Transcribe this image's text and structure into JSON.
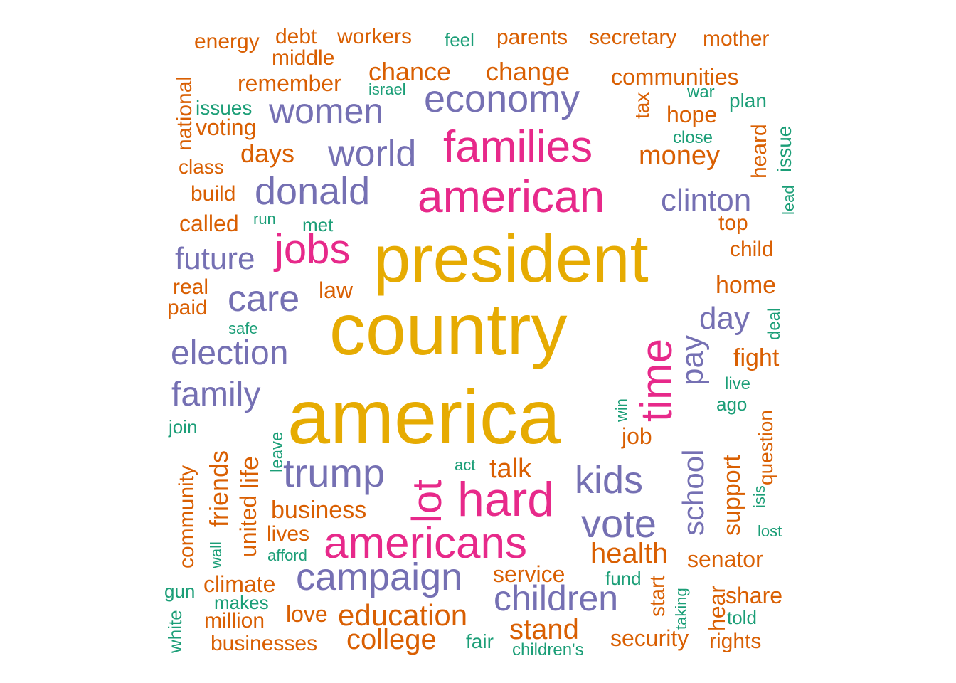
{
  "colors": {
    "gold": "#E6AB02",
    "pink": "#E7298A",
    "purple": "#7570B3",
    "orange": "#D95F02",
    "teal": "#1B9E77"
  },
  "words": [
    {
      "text": "president",
      "color": "gold",
      "weight": 10
    },
    {
      "text": "country",
      "color": "gold",
      "weight": 10
    },
    {
      "text": "america",
      "color": "gold",
      "weight": 10
    },
    {
      "text": "families",
      "color": "pink",
      "weight": 7
    },
    {
      "text": "american",
      "color": "pink",
      "weight": 7
    },
    {
      "text": "jobs",
      "color": "pink",
      "weight": 7
    },
    {
      "text": "time",
      "color": "pink",
      "weight": 7
    },
    {
      "text": "lot",
      "color": "pink",
      "weight": 7
    },
    {
      "text": "hard",
      "color": "pink",
      "weight": 7
    },
    {
      "text": "americans",
      "color": "pink",
      "weight": 7
    },
    {
      "text": "economy",
      "color": "purple",
      "weight": 5
    },
    {
      "text": "women",
      "color": "purple",
      "weight": 5
    },
    {
      "text": "world",
      "color": "purple",
      "weight": 5
    },
    {
      "text": "donald",
      "color": "purple",
      "weight": 5
    },
    {
      "text": "clinton",
      "color": "purple",
      "weight": 5
    },
    {
      "text": "future",
      "color": "purple",
      "weight": 5
    },
    {
      "text": "care",
      "color": "purple",
      "weight": 5
    },
    {
      "text": "election",
      "color": "purple",
      "weight": 5
    },
    {
      "text": "family",
      "color": "purple",
      "weight": 5
    },
    {
      "text": "trump",
      "color": "purple",
      "weight": 5
    },
    {
      "text": "day",
      "color": "purple",
      "weight": 5
    },
    {
      "text": "pay",
      "color": "purple",
      "weight": 5
    },
    {
      "text": "school",
      "color": "purple",
      "weight": 5
    },
    {
      "text": "kids",
      "color": "purple",
      "weight": 5
    },
    {
      "text": "vote",
      "color": "purple",
      "weight": 5
    },
    {
      "text": "campaign",
      "color": "purple",
      "weight": 5
    },
    {
      "text": "children",
      "color": "purple",
      "weight": 5
    },
    {
      "text": "energy",
      "color": "orange",
      "weight": 3
    },
    {
      "text": "debt",
      "color": "orange",
      "weight": 3
    },
    {
      "text": "workers",
      "color": "orange",
      "weight": 3
    },
    {
      "text": "parents",
      "color": "orange",
      "weight": 3
    },
    {
      "text": "secretary",
      "color": "orange",
      "weight": 3
    },
    {
      "text": "mother",
      "color": "orange",
      "weight": 3
    },
    {
      "text": "middle",
      "color": "orange",
      "weight": 3
    },
    {
      "text": "chance",
      "color": "orange",
      "weight": 3
    },
    {
      "text": "change",
      "color": "orange",
      "weight": 3
    },
    {
      "text": "communities",
      "color": "orange",
      "weight": 3
    },
    {
      "text": "remember",
      "color": "orange",
      "weight": 3
    },
    {
      "text": "national",
      "color": "orange",
      "weight": 3
    },
    {
      "text": "voting",
      "color": "orange",
      "weight": 3
    },
    {
      "text": "tax",
      "color": "orange",
      "weight": 3
    },
    {
      "text": "hope",
      "color": "orange",
      "weight": 3
    },
    {
      "text": "days",
      "color": "orange",
      "weight": 3
    },
    {
      "text": "money",
      "color": "orange",
      "weight": 3
    },
    {
      "text": "heard",
      "color": "orange",
      "weight": 3
    },
    {
      "text": "class",
      "color": "orange",
      "weight": 3
    },
    {
      "text": "build",
      "color": "orange",
      "weight": 3
    },
    {
      "text": "called",
      "color": "orange",
      "weight": 3
    },
    {
      "text": "top",
      "color": "orange",
      "weight": 3
    },
    {
      "text": "child",
      "color": "orange",
      "weight": 3
    },
    {
      "text": "real",
      "color": "orange",
      "weight": 3
    },
    {
      "text": "law",
      "color": "orange",
      "weight": 3
    },
    {
      "text": "paid",
      "color": "orange",
      "weight": 3
    },
    {
      "text": "home",
      "color": "orange",
      "weight": 3
    },
    {
      "text": "fight",
      "color": "orange",
      "weight": 3
    },
    {
      "text": "question",
      "color": "orange",
      "weight": 3
    },
    {
      "text": "job",
      "color": "orange",
      "weight": 3
    },
    {
      "text": "support",
      "color": "orange",
      "weight": 3
    },
    {
      "text": "friends",
      "color": "orange",
      "weight": 3
    },
    {
      "text": "life",
      "color": "orange",
      "weight": 3
    },
    {
      "text": "united",
      "color": "orange",
      "weight": 3
    },
    {
      "text": "talk",
      "color": "orange",
      "weight": 3
    },
    {
      "text": "community",
      "color": "orange",
      "weight": 3
    },
    {
      "text": "business",
      "color": "orange",
      "weight": 3
    },
    {
      "text": "lives",
      "color": "orange",
      "weight": 3
    },
    {
      "text": "health",
      "color": "orange",
      "weight": 3
    },
    {
      "text": "senator",
      "color": "orange",
      "weight": 3
    },
    {
      "text": "service",
      "color": "orange",
      "weight": 3
    },
    {
      "text": "climate",
      "color": "orange",
      "weight": 3
    },
    {
      "text": "start",
      "color": "orange",
      "weight": 3
    },
    {
      "text": "hear",
      "color": "orange",
      "weight": 3
    },
    {
      "text": "share",
      "color": "orange",
      "weight": 3
    },
    {
      "text": "education",
      "color": "orange",
      "weight": 3
    },
    {
      "text": "love",
      "color": "orange",
      "weight": 3
    },
    {
      "text": "million",
      "color": "orange",
      "weight": 3
    },
    {
      "text": "stand",
      "color": "orange",
      "weight": 3
    },
    {
      "text": "college",
      "color": "orange",
      "weight": 3
    },
    {
      "text": "security",
      "color": "orange",
      "weight": 3
    },
    {
      "text": "rights",
      "color": "orange",
      "weight": 3
    },
    {
      "text": "businesses",
      "color": "orange",
      "weight": 3
    },
    {
      "text": "feel",
      "color": "teal",
      "weight": 2
    },
    {
      "text": "israel",
      "color": "teal",
      "weight": 2
    },
    {
      "text": "issues",
      "color": "teal",
      "weight": 2
    },
    {
      "text": "war",
      "color": "teal",
      "weight": 2
    },
    {
      "text": "plan",
      "color": "teal",
      "weight": 2
    },
    {
      "text": "close",
      "color": "teal",
      "weight": 2
    },
    {
      "text": "issue",
      "color": "teal",
      "weight": 2
    },
    {
      "text": "lead",
      "color": "teal",
      "weight": 2
    },
    {
      "text": "run",
      "color": "teal",
      "weight": 2
    },
    {
      "text": "met",
      "color": "teal",
      "weight": 2
    },
    {
      "text": "safe",
      "color": "teal",
      "weight": 2
    },
    {
      "text": "deal",
      "color": "teal",
      "weight": 2
    },
    {
      "text": "live",
      "color": "teal",
      "weight": 2
    },
    {
      "text": "ago",
      "color": "teal",
      "weight": 2
    },
    {
      "text": "win",
      "color": "teal",
      "weight": 2
    },
    {
      "text": "join",
      "color": "teal",
      "weight": 2
    },
    {
      "text": "leave",
      "color": "teal",
      "weight": 2
    },
    {
      "text": "act",
      "color": "teal",
      "weight": 2
    },
    {
      "text": "isis",
      "color": "teal",
      "weight": 2
    },
    {
      "text": "lost",
      "color": "teal",
      "weight": 2
    },
    {
      "text": "wall",
      "color": "teal",
      "weight": 2
    },
    {
      "text": "afford",
      "color": "teal",
      "weight": 2
    },
    {
      "text": "fund",
      "color": "teal",
      "weight": 2
    },
    {
      "text": "taking",
      "color": "teal",
      "weight": 2
    },
    {
      "text": "gun",
      "color": "teal",
      "weight": 2
    },
    {
      "text": "makes",
      "color": "teal",
      "weight": 2
    },
    {
      "text": "white",
      "color": "teal",
      "weight": 2
    },
    {
      "text": "told",
      "color": "teal",
      "weight": 2
    },
    {
      "text": "fair",
      "color": "teal",
      "weight": 2
    },
    {
      "text": "children's",
      "color": "teal",
      "weight": 2
    }
  ]
}
